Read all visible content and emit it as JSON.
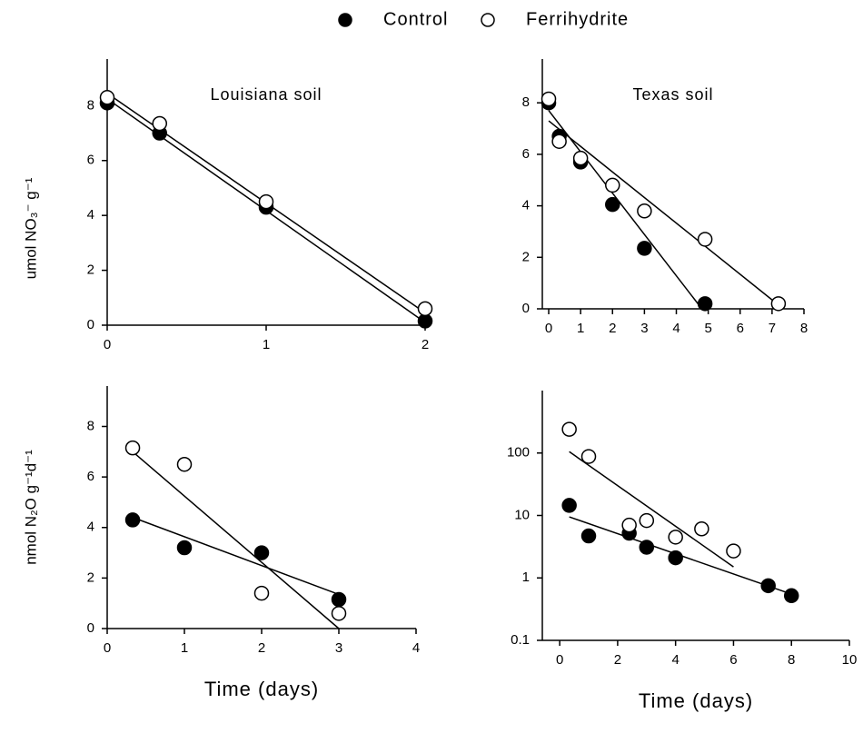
{
  "chart_data": [
    {
      "type": "scatter",
      "title": "Louisiana soil",
      "y_label": "umol NO₃⁻ g⁻¹",
      "xlim": [
        0,
        2
      ],
      "xticks": [
        0,
        1,
        2
      ],
      "ylim": [
        0,
        9.7
      ],
      "yticks": [
        0,
        2,
        4,
        6,
        8
      ],
      "log_y": false,
      "series": [
        {
          "name": "Control",
          "color": "#000000",
          "edge": "#000000",
          "x": [
            0,
            0.33,
            1,
            2
          ],
          "values": [
            8.1,
            7.0,
            4.3,
            0.15
          ],
          "fit": {
            "x": [
              0,
              2
            ],
            "values": [
              8.25,
              0.1
            ]
          }
        },
        {
          "name": "Ferrihydrite",
          "color": "#ffffff",
          "edge": "#000000",
          "x": [
            0,
            0.33,
            1,
            2
          ],
          "values": [
            8.3,
            7.35,
            4.5,
            0.6
          ],
          "fit": {
            "x": [
              0,
              2
            ],
            "values": [
              8.45,
              0.45
            ]
          }
        }
      ]
    },
    {
      "type": "scatter",
      "title": "Texas soil",
      "xlim": [
        -0.2,
        8
      ],
      "xticks": [
        0,
        1,
        2,
        3,
        4,
        5,
        6,
        7,
        8
      ],
      "ylim": [
        0,
        9.7
      ],
      "yticks": [
        0,
        2,
        4,
        6,
        8
      ],
      "log_y": false,
      "series": [
        {
          "color": "#000000",
          "edge": "#000000",
          "x": [
            0,
            0.33,
            1,
            2,
            3,
            4.9
          ],
          "values": [
            8.0,
            6.7,
            5.7,
            4.05,
            2.35,
            0.2
          ],
          "fit": {
            "x": [
              0,
              4.8
            ],
            "values": [
              7.7,
              0
            ]
          }
        },
        {
          "color": "#ffffff",
          "edge": "#000000",
          "x": [
            0,
            0.33,
            1,
            2,
            3,
            4.9,
            7.2
          ],
          "values": [
            8.15,
            6.5,
            5.85,
            4.8,
            3.8,
            2.7,
            0.2
          ],
          "fit": {
            "x": [
              0,
              7.2
            ],
            "values": [
              7.3,
              0.15
            ]
          }
        }
      ]
    },
    {
      "type": "scatter",
      "y_label": "nmol N₂O g⁻¹d⁻¹",
      "x_label": "Time (days)",
      "xlim": [
        0,
        4
      ],
      "xticks": [
        0,
        1,
        2,
        3,
        4
      ],
      "ylim": [
        0,
        9.6
      ],
      "yticks": [
        0,
        2,
        4,
        6,
        8
      ],
      "log_y": false,
      "series": [
        {
          "color": "#000000",
          "edge": "#000000",
          "x": [
            0.33,
            1,
            2,
            3
          ],
          "values": [
            4.3,
            3.2,
            3.0,
            1.15
          ],
          "fit": {
            "x": [
              0.33,
              3
            ],
            "values": [
              4.4,
              1.35
            ]
          }
        },
        {
          "color": "#ffffff",
          "edge": "#000000",
          "x": [
            0.33,
            1,
            2,
            3
          ],
          "values": [
            7.15,
            6.5,
            1.4,
            0.6
          ],
          "fit": {
            "x": [
              0.33,
              3
            ],
            "values": [
              7.0,
              0
            ]
          }
        }
      ]
    },
    {
      "type": "scatter",
      "x_label": "Time (days)",
      "xlim": [
        -0.6,
        10
      ],
      "xticks": [
        0,
        2,
        4,
        6,
        8,
        10
      ],
      "ylim": [
        0.1,
        1000
      ],
      "yticks": [
        0.1,
        1,
        10,
        100
      ],
      "log_y": true,
      "series": [
        {
          "color": "#000000",
          "edge": "#000000",
          "x": [
            0.33,
            1,
            2.4,
            3,
            4,
            7.2,
            8
          ],
          "values": [
            14.5,
            4.7,
            5.2,
            3.1,
            2.1,
            0.75,
            0.52
          ],
          "fit": {
            "x": [
              0.33,
              8
            ],
            "values": [
              9.5,
              0.55
            ]
          }
        },
        {
          "color": "#ffffff",
          "edge": "#000000",
          "x": [
            0.33,
            1,
            2.4,
            3,
            4,
            4.9,
            6
          ],
          "values": [
            240,
            88,
            7,
            8.3,
            4.5,
            6.1,
            2.7
          ],
          "fit": {
            "x": [
              0.33,
              6
            ],
            "values": [
              105,
              1.5
            ]
          }
        }
      ]
    }
  ]
}
